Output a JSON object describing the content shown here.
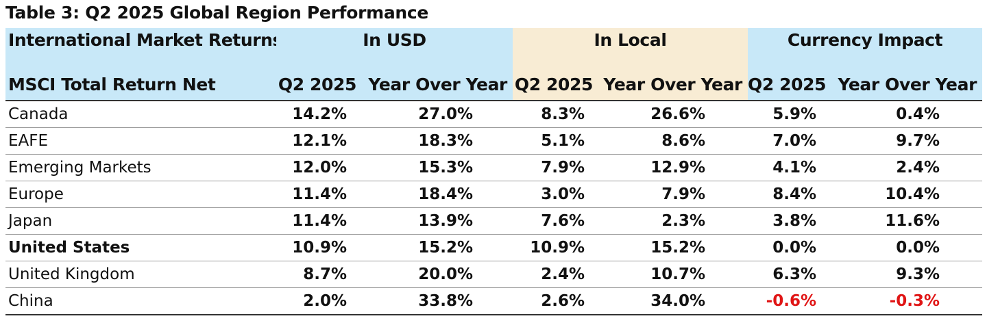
{
  "title": "Table 3: Q2 2025 Global Region Performance",
  "header": {
    "row1": {
      "label": "International Market Returns",
      "usd": "In USD",
      "local": "In Local",
      "currency": "Currency Impact"
    },
    "row2": {
      "label": "MSCI Total Return Net",
      "usd_q2": "Q2 2025",
      "usd_yoy": "Year Over Year",
      "local_q2": "Q2 2025",
      "local_yoy": "Year Over Year",
      "cur_q2": "Q2 2025",
      "cur_yoy": "Year Over Year"
    }
  },
  "colors": {
    "usd_header_bg": "#c8e8f8",
    "local_header_bg": "#f8ecd4",
    "currency_header_bg": "#c8e8f8",
    "negative": "#e01515"
  },
  "rows": [
    {
      "region": "Canada",
      "usd_q2": "14.2%",
      "usd_yoy": "27.0%",
      "local_q2": "8.3%",
      "local_yoy": "26.6%",
      "cur_q2": "5.9%",
      "cur_yoy": "0.4%"
    },
    {
      "region": "EAFE",
      "usd_q2": "12.1%",
      "usd_yoy": "18.3%",
      "local_q2": "5.1%",
      "local_yoy": "8.6%",
      "cur_q2": "7.0%",
      "cur_yoy": "9.7%"
    },
    {
      "region": "Emerging Markets",
      "usd_q2": "12.0%",
      "usd_yoy": "15.3%",
      "local_q2": "7.9%",
      "local_yoy": "12.9%",
      "cur_q2": "4.1%",
      "cur_yoy": "2.4%"
    },
    {
      "region": "Europe",
      "usd_q2": "11.4%",
      "usd_yoy": "18.4%",
      "local_q2": "3.0%",
      "local_yoy": "7.9%",
      "cur_q2": "8.4%",
      "cur_yoy": "10.4%"
    },
    {
      "region": "Japan",
      "usd_q2": "11.4%",
      "usd_yoy": "13.9%",
      "local_q2": "7.6%",
      "local_yoy": "2.3%",
      "cur_q2": "3.8%",
      "cur_yoy": "11.6%"
    },
    {
      "region": "United States",
      "usd_q2": "10.9%",
      "usd_yoy": "15.2%",
      "local_q2": "10.9%",
      "local_yoy": "15.2%",
      "cur_q2": "0.0%",
      "cur_yoy": "0.0%"
    },
    {
      "region": "United Kingdom",
      "usd_q2": "8.7%",
      "usd_yoy": "20.0%",
      "local_q2": "2.4%",
      "local_yoy": "10.7%",
      "cur_q2": "6.3%",
      "cur_yoy": "9.3%"
    },
    {
      "region": "China",
      "usd_q2": "2.0%",
      "usd_yoy": "33.8%",
      "local_q2": "2.6%",
      "local_yoy": "34.0%",
      "cur_q2": "-0.6%",
      "cur_yoy": "-0.3%"
    }
  ]
}
